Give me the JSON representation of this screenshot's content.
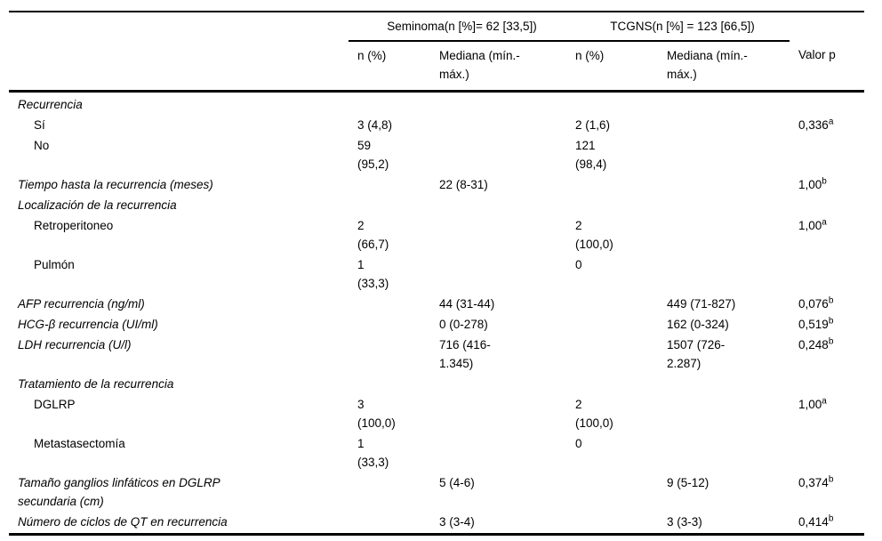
{
  "table": {
    "group_headers": {
      "seminoma": "Seminoma(n [%]= 62 [33,5])",
      "tcgns": "TCGNS(n [%] = 123 [66,5])"
    },
    "col_headers": {
      "sem_n": "n (%)",
      "sem_median": "Mediana (mín.-\nmáx.)",
      "tcgns_n": "n (%)",
      "tcgns_median": "Mediana (mín.-\nmáx.)",
      "p": "Valor p"
    },
    "rows": [
      {
        "label": "Recurrencia",
        "indent": false,
        "sem_n": "",
        "sem_median": "",
        "tcgns_n": "",
        "tcgns_median": "",
        "p": "",
        "p_sup": ""
      },
      {
        "label": "Sí",
        "indent": true,
        "sem_n": "3 (4,8)",
        "sem_median": "",
        "tcgns_n": "2 (1,6)",
        "tcgns_median": "",
        "p": "0,336",
        "p_sup": "a"
      },
      {
        "label": "No",
        "indent": true,
        "sem_n": "59\n(95,2)",
        "sem_median": "",
        "tcgns_n": "121\n(98,4)",
        "tcgns_median": "",
        "p": "",
        "p_sup": ""
      },
      {
        "label": "Tiempo hasta la recurrencia (meses)",
        "indent": false,
        "sem_n": "",
        "sem_median": "22 (8-31)",
        "tcgns_n": "",
        "tcgns_median": "",
        "p": "1,00",
        "p_sup": "b"
      },
      {
        "label": "Localización de la recurrencia",
        "indent": false,
        "sem_n": "",
        "sem_median": "",
        "tcgns_n": "",
        "tcgns_median": "",
        "p": "",
        "p_sup": ""
      },
      {
        "label": "Retroperitoneo",
        "indent": true,
        "sem_n": "2\n(66,7)",
        "sem_median": "",
        "tcgns_n": "2\n(100,0)",
        "tcgns_median": "",
        "p": "1,00",
        "p_sup": "a"
      },
      {
        "label": "Pulmón",
        "indent": true,
        "sem_n": "1\n(33,3)",
        "sem_median": "",
        "tcgns_n": "0",
        "tcgns_median": "",
        "p": "",
        "p_sup": ""
      },
      {
        "label": "AFP recurrencia (ng/ml)",
        "indent": false,
        "sem_n": "",
        "sem_median": "44 (31-44)",
        "tcgns_n": "",
        "tcgns_median": "449 (71-827)",
        "p": "0,076",
        "p_sup": "b"
      },
      {
        "label": "HCG-β recurrencia (UI/ml)",
        "indent": false,
        "sem_n": "",
        "sem_median": "0 (0-278)",
        "tcgns_n": "",
        "tcgns_median": "162 (0-324)",
        "p": "0,519",
        "p_sup": "b"
      },
      {
        "label": "LDH recurrencia (U/l)",
        "indent": false,
        "sem_n": "",
        "sem_median": "716 (416-\n1.345)",
        "tcgns_n": "",
        "tcgns_median": "1507 (726-\n2.287)",
        "p": "0,248",
        "p_sup": "b"
      },
      {
        "label": "Tratamiento de la recurrencia",
        "indent": false,
        "sem_n": "",
        "sem_median": "",
        "tcgns_n": "",
        "tcgns_median": "",
        "p": "",
        "p_sup": ""
      },
      {
        "label": "DGLRP",
        "indent": true,
        "sem_n": "3\n(100,0)",
        "sem_median": "",
        "tcgns_n": "2\n(100,0)",
        "tcgns_median": "",
        "p": "1,00",
        "p_sup": "a"
      },
      {
        "label": "Metastasectomía",
        "indent": true,
        "sem_n": "1\n(33,3)",
        "sem_median": "",
        "tcgns_n": "0",
        "tcgns_median": "",
        "p": "",
        "p_sup": ""
      },
      {
        "label": "Tamaño ganglios linfáticos en DGLRP\nsecundaria (cm)",
        "indent": false,
        "sem_n": "",
        "sem_median": "5 (4-6)",
        "tcgns_n": "",
        "tcgns_median": "9 (5-12)",
        "p": "0,374",
        "p_sup": "b"
      },
      {
        "label": "Número de ciclos de QT en recurrencia",
        "indent": false,
        "sem_n": "",
        "sem_median": "3 (3-4)",
        "tcgns_n": "",
        "tcgns_median": "3 (3-3)",
        "p": "0,414",
        "p_sup": "b"
      }
    ]
  }
}
